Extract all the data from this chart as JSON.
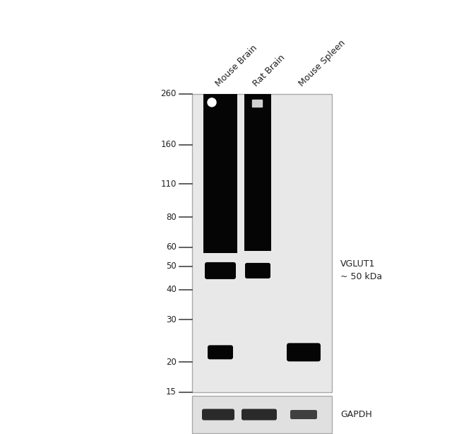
{
  "fig_w": 6.5,
  "fig_h": 6.14,
  "bg_color": "#ffffff",
  "panel_bg": "#e8e8e8",
  "gapdh_bg": "#e0e0e0",
  "panel_edge": "#aaaaaa",
  "ladder_labels": [
    "260",
    "160",
    "110",
    "80",
    "60",
    "50",
    "40",
    "30",
    "20",
    "15"
  ],
  "ladder_kda": [
    260,
    160,
    110,
    80,
    60,
    50,
    40,
    30,
    20,
    15
  ],
  "sample_labels": [
    "Mouse Brain",
    "Rat Brain",
    "Mouse Spleen"
  ],
  "vglut1_label": "VGLUT1\n~ 50 kDa",
  "gapdh_label": "GAPDH",
  "text_color": "#222222",
  "band_color": "#050505",
  "gapdh_band_color": "#2a2a2a"
}
